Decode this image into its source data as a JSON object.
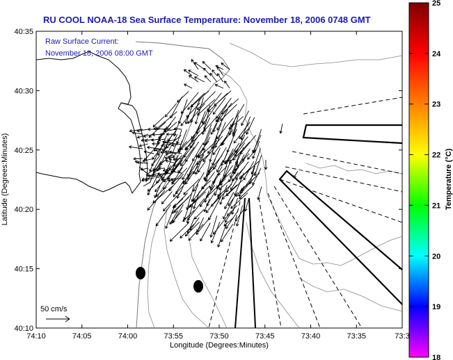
{
  "chart_data": {
    "type": "map",
    "title": "RU COOL  NOAA-18  Sea Surface Temperature:  November 18, 2006 0748 GMT",
    "annotation": {
      "line1": "Raw Surface Current:",
      "line2": "November 18, 2006 08:00 GMT"
    },
    "xlabel": "Longitude (Degrees:Minutes)",
    "ylabel": "Latitude (Degrees:Minutes)",
    "x_tick_labels": [
      "74:10",
      "74:05",
      "74:00",
      "73:55",
      "73:50",
      "73:45",
      "73:40",
      "73:35",
      "73:3"
    ],
    "y_tick_labels": [
      "40:35",
      "40:30",
      "40:25",
      "40:20",
      "40:15",
      "40:10"
    ],
    "colorbar": {
      "label": "Temperature (°C)",
      "min": 18,
      "max": 25,
      "tick_labels": [
        "25",
        "24",
        "23",
        "22",
        "21",
        "20",
        "19",
        "18"
      ],
      "colors": [
        "#ff00ff",
        "#0000ff",
        "#00ffff",
        "#00ff00",
        "#ffff00",
        "#ff8000",
        "#ff0000",
        "#800000"
      ]
    },
    "scale_arrow": {
      "label": "50 cm/s",
      "value_cm_s": 50
    },
    "grid": false
  }
}
